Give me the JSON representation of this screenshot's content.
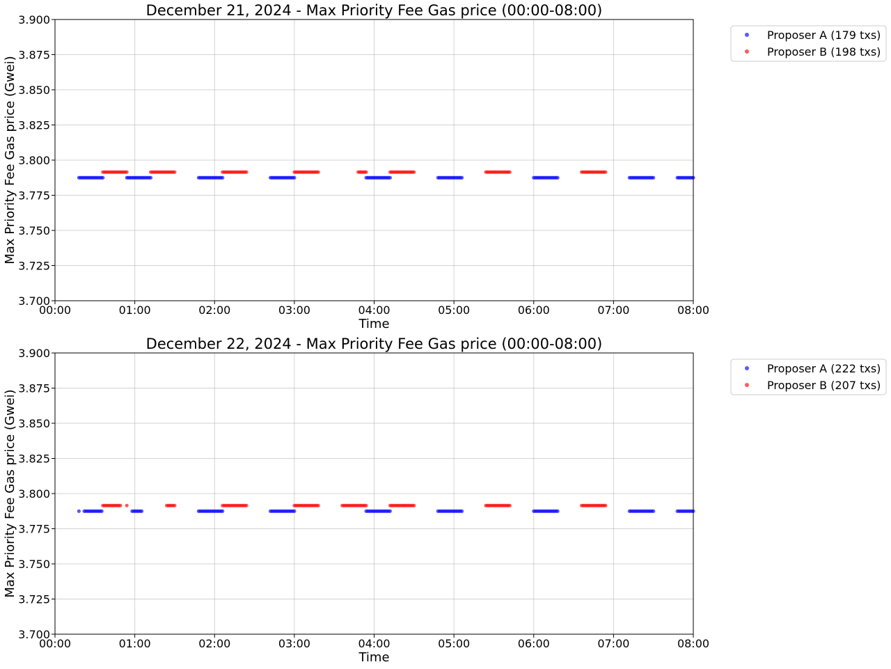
{
  "colors": {
    "proposer_a": "#0000ff",
    "proposer_b": "#ff0000"
  },
  "chart_data": [
    {
      "type": "scatter",
      "title": "December 21, 2024 - Max Priority Fee Gas price (00:00-08:00)",
      "xlabel": "Time",
      "ylabel": "Max Priority Fee Gas price (Gwei)",
      "xlim": [
        "00:00",
        "08:00"
      ],
      "ylim": [
        3.7,
        3.9
      ],
      "x_ticks": [
        "00:00",
        "01:00",
        "02:00",
        "03:00",
        "04:00",
        "05:00",
        "06:00",
        "07:00",
        "08:00"
      ],
      "y_ticks": [
        "3.700",
        "3.725",
        "3.750",
        "3.775",
        "3.800",
        "3.825",
        "3.850",
        "3.875",
        "3.900"
      ],
      "grid": true,
      "legend_position": "outside-top-right",
      "series": [
        {
          "name": "Proposer A (179 txs)",
          "color": "#0000ff",
          "y": 3.7875,
          "segments": [
            [
              "00:18",
              "00:36"
            ],
            [
              "00:54",
              "01:12"
            ],
            [
              "01:48",
              "02:06"
            ],
            [
              "02:42",
              "03:00"
            ],
            [
              "03:54",
              "04:12"
            ],
            [
              "04:48",
              "05:06"
            ],
            [
              "06:00",
              "06:18"
            ],
            [
              "07:12",
              "07:30"
            ],
            [
              "07:48",
              "08:00"
            ]
          ]
        },
        {
          "name": "Proposer B (198 txs)",
          "color": "#ff0000",
          "y": 3.7915,
          "segments": [
            [
              "00:36",
              "00:54"
            ],
            [
              "01:12",
              "01:30"
            ],
            [
              "02:06",
              "02:24"
            ],
            [
              "03:00",
              "03:18"
            ],
            [
              "03:48",
              "03:54"
            ],
            [
              "04:12",
              "04:30"
            ],
            [
              "05:24",
              "05:42"
            ],
            [
              "06:36",
              "06:54"
            ]
          ]
        }
      ]
    },
    {
      "type": "scatter",
      "title": "December 22, 2024 - Max Priority Fee Gas price (00:00-08:00)",
      "xlabel": "Time",
      "ylabel": "Max Priority Fee Gas price (Gwei)",
      "xlim": [
        "00:00",
        "08:00"
      ],
      "ylim": [
        3.7,
        3.9
      ],
      "x_ticks": [
        "00:00",
        "01:00",
        "02:00",
        "03:00",
        "04:00",
        "05:00",
        "06:00",
        "07:00",
        "08:00"
      ],
      "y_ticks": [
        "3.700",
        "3.725",
        "3.750",
        "3.775",
        "3.800",
        "3.825",
        "3.850",
        "3.875",
        "3.900"
      ],
      "grid": true,
      "legend_position": "outside-top-right",
      "series": [
        {
          "name": "Proposer A (222 txs)",
          "color": "#0000ff",
          "y": 3.7875,
          "segments": [
            [
              "00:18",
              "00:18"
            ],
            [
              "00:22",
              "00:36"
            ],
            [
              "00:58",
              "01:06"
            ],
            [
              "01:48",
              "02:06"
            ],
            [
              "02:42",
              "03:00"
            ],
            [
              "03:54",
              "04:12"
            ],
            [
              "04:48",
              "05:06"
            ],
            [
              "06:00",
              "06:18"
            ],
            [
              "07:12",
              "07:30"
            ],
            [
              "07:48",
              "08:00"
            ]
          ]
        },
        {
          "name": "Proposer B (207 txs)",
          "color": "#ff0000",
          "y": 3.7915,
          "segments": [
            [
              "00:36",
              "00:50"
            ],
            [
              "00:54",
              "00:54"
            ],
            [
              "01:24",
              "01:30"
            ],
            [
              "02:06",
              "02:24"
            ],
            [
              "03:00",
              "03:18"
            ],
            [
              "03:36",
              "03:54"
            ],
            [
              "04:12",
              "04:30"
            ],
            [
              "05:24",
              "05:42"
            ],
            [
              "06:36",
              "06:54"
            ]
          ]
        }
      ]
    }
  ]
}
